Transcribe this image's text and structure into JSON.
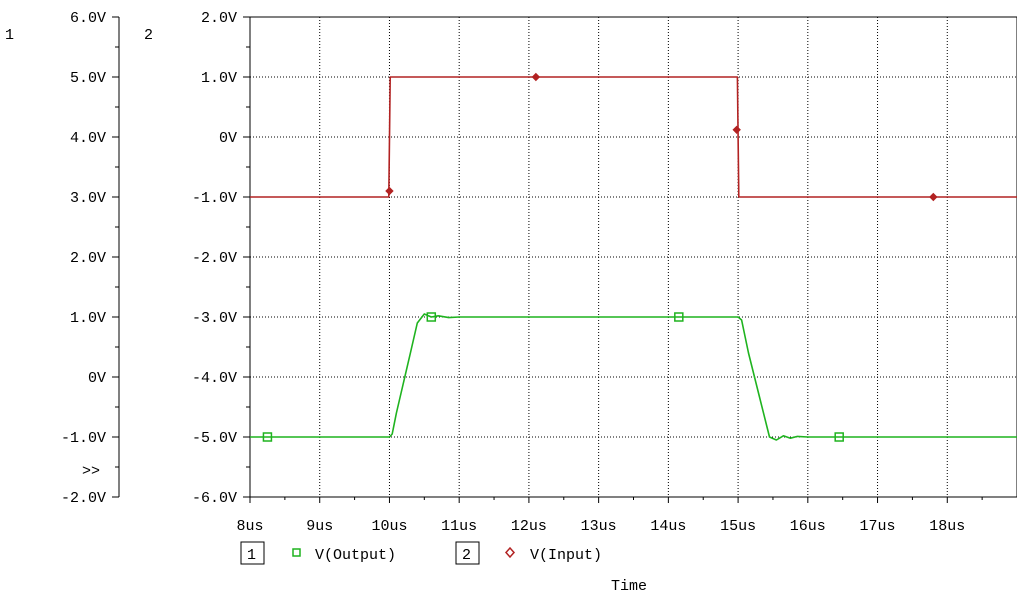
{
  "chart_data": {
    "type": "line",
    "xlabel": "Time",
    "x_ticks": [
      "8us",
      "9us",
      "10us",
      "11us",
      "12us",
      "13us",
      "14us",
      "15us",
      "16us",
      "17us",
      "18us"
    ],
    "xlim": [
      8,
      19
    ],
    "axes": [
      {
        "id": "1",
        "ylim": [
          -2,
          6
        ],
        "ticks": [
          "6.0V",
          "5.0V",
          "4.0V",
          "3.0V",
          "2.0V",
          "1.0V",
          "0V",
          "-1.0V",
          "-2.0V"
        ],
        "overflow_marker": ">>"
      },
      {
        "id": "2",
        "ylim": [
          -6,
          2
        ],
        "ticks": [
          "2.0V",
          "1.0V",
          "0V",
          "-1.0V",
          "-2.0V",
          "-3.0V",
          "-4.0V",
          "-5.0V",
          "-6.0V"
        ]
      }
    ],
    "grid": true,
    "series": [
      {
        "name": "V(Output)",
        "axis": "1",
        "color": "#1fb31f",
        "marker": "square",
        "x": [
          8.0,
          10.0,
          10.04,
          10.1,
          10.2,
          10.3,
          10.4,
          10.5,
          10.6,
          10.7,
          10.85,
          11.0,
          15.0,
          15.05,
          15.15,
          15.3,
          15.45,
          15.55,
          15.65,
          15.75,
          15.85,
          16.0,
          19.0
        ],
        "y": [
          -1.0,
          -1.0,
          -0.95,
          -0.6,
          -0.1,
          0.4,
          0.9,
          1.05,
          1.0,
          1.02,
          0.99,
          1.0,
          1.0,
          0.95,
          0.4,
          -0.3,
          -1.0,
          -1.05,
          -0.98,
          -1.02,
          -0.99,
          -1.0,
          -1.0
        ],
        "marker_x": [
          8.25,
          10.6,
          14.15,
          16.45
        ]
      },
      {
        "name": "V(Input)",
        "axis": "2",
        "color": "#b22222",
        "marker": "diamond",
        "x": [
          8.0,
          9.99,
          10.01,
          14.99,
          15.01,
          19.0
        ],
        "y": [
          -1.0,
          -1.0,
          1.0,
          1.0,
          -1.0,
          -1.0
        ],
        "markers": [
          [
            10.0,
            -0.9
          ],
          [
            12.1,
            1.0
          ],
          [
            14.98,
            0.12
          ],
          [
            17.8,
            -1.0
          ]
        ]
      }
    ],
    "legend": [
      {
        "id": "1",
        "label": "V(Output)"
      },
      {
        "id": "2",
        "label": "V(Input)"
      }
    ]
  }
}
